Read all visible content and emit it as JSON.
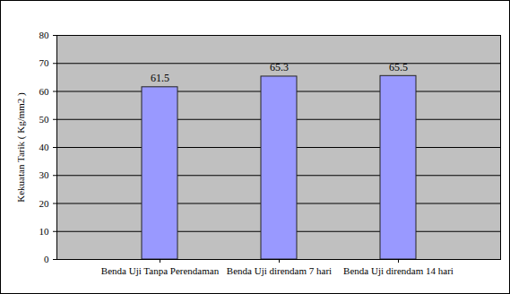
{
  "chart_data": {
    "type": "bar",
    "y_label": "Kekuatan Tarik ( Kg/mm2 )",
    "categories": [
      "Benda Uji Tanpa Perendaman",
      "Benda Uji direndam 7 hari",
      "Benda Uji direndam 14 hari"
    ],
    "values": [
      61.5,
      65.3,
      65.5
    ],
    "color": "#9999ff",
    "ylim": [
      0,
      80
    ],
    "yticks": [
      0,
      10,
      20,
      30,
      40,
      50,
      60,
      70,
      80
    ],
    "grid": true,
    "data_labels": true
  }
}
